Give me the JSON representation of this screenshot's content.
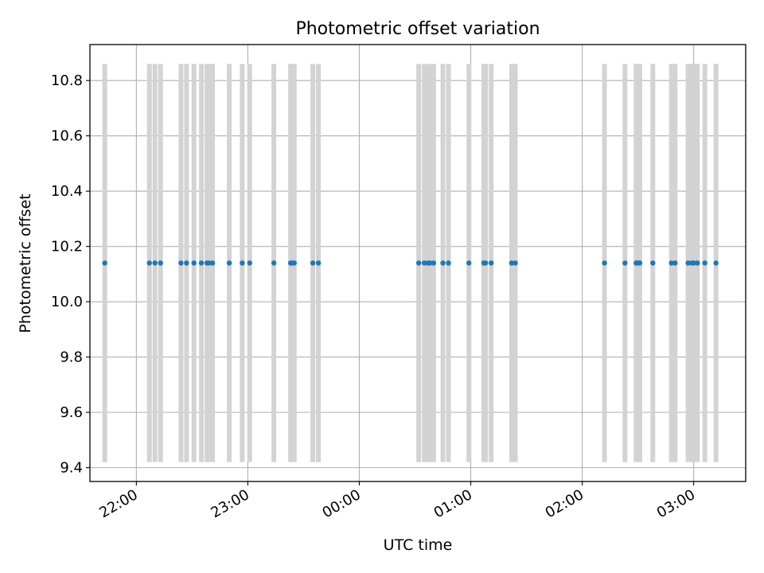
{
  "chart_data": {
    "type": "scatter",
    "title": "Photometric offset variation",
    "xlabel": "UTC time",
    "ylabel": "Photometric offset",
    "x_ticks": [
      "22:00",
      "23:00",
      "00:00",
      "01:00",
      "02:00",
      "03:00"
    ],
    "xlim": [
      "21:35",
      "03:28"
    ],
    "ylim": [
      9.35,
      10.93
    ],
    "y_ticks": [
      "9.4",
      "9.6",
      "9.8",
      "10.0",
      "10.2",
      "10.4",
      "10.6",
      "10.8"
    ],
    "grid": true,
    "series": [
      {
        "x": [
          "21:43",
          "22:07",
          "22:10",
          "22:13",
          "22:24",
          "22:27",
          "22:31",
          "22:35",
          "22:38",
          "22:39",
          "22:41",
          "22:50",
          "22:57",
          "23:01",
          "23:14",
          "23:23",
          "23:24",
          "23:25",
          "23:35",
          "23:38",
          "00:32",
          "00:35",
          "00:37",
          "00:38",
          "00:40",
          "00:45",
          "00:48",
          "00:59",
          "01:07",
          "01:08",
          "01:11",
          "01:22",
          "01:24",
          "02:12",
          "02:23",
          "02:29",
          "02:30",
          "02:31",
          "02:38",
          "02:48",
          "02:50",
          "02:57",
          "02:59",
          "03:00",
          "03:02",
          "03:06",
          "03:12"
        ],
        "y": [
          10.14,
          10.14,
          10.14,
          10.14,
          10.14,
          10.14,
          10.14,
          10.14,
          10.14,
          10.14,
          10.14,
          10.14,
          10.14,
          10.14,
          10.14,
          10.14,
          10.14,
          10.14,
          10.14,
          10.14,
          10.14,
          10.14,
          10.14,
          10.14,
          10.14,
          10.14,
          10.14,
          10.14,
          10.14,
          10.14,
          10.14,
          10.14,
          10.14,
          10.14,
          10.14,
          10.14,
          10.14,
          10.14,
          10.14,
          10.14,
          10.14,
          10.14,
          10.14,
          10.14,
          10.14,
          10.14,
          10.14
        ],
        "error_low": 9.42,
        "error_high": 10.86,
        "color": "#1f77b4",
        "error_color": "#d3d3d3"
      }
    ]
  }
}
